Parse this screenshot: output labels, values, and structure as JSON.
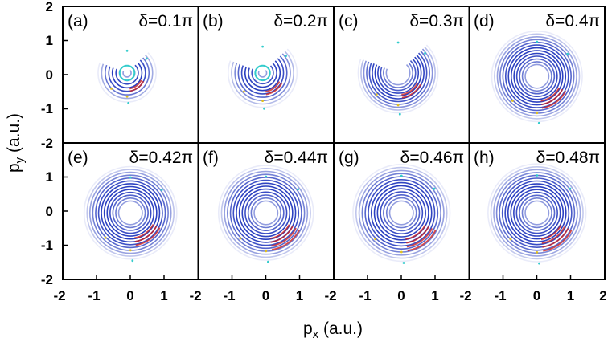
{
  "figure": {
    "ylabel": {
      "main": "p",
      "sub": "y",
      "unit": " (a.u.)"
    },
    "xlabel": {
      "main": "p",
      "sub": "x",
      "unit": " (a.u.)"
    },
    "y_ticks": [
      "2",
      "1",
      "0",
      "-1",
      "-2",
      "1",
      "0",
      "-1",
      "-2"
    ],
    "x_ticks": [
      "-2",
      "-1",
      "0",
      "1",
      "-2",
      "-1",
      "0",
      "1",
      "-2",
      "-1",
      "0",
      "1",
      "-2",
      "-1",
      "0",
      "1",
      "2"
    ]
  },
  "colors": {
    "ring_blue": "#2a3fc0",
    "ring_red": "#cc2222",
    "ring_cyan": "#33cccc",
    "ring_yellow": "#e0c020",
    "frame": "#000000"
  },
  "panels": [
    {
      "label": "(a)",
      "delta": "δ=0.1π"
    },
    {
      "label": "(b)",
      "delta": "δ=0.2π"
    },
    {
      "label": "(c)",
      "delta": "δ=0.3π"
    },
    {
      "label": "(d)",
      "delta": "δ=0.4π"
    },
    {
      "label": "(e)",
      "delta": "δ=0.42π"
    },
    {
      "label": "(f)",
      "delta": "δ=0.44π"
    },
    {
      "label": "(g)",
      "delta": "δ=0.46π"
    },
    {
      "label": "(h)",
      "delta": "δ=0.48π"
    }
  ],
  "chart_data": {
    "type": "heatmap",
    "layout": "2x4 panel grid",
    "xlabel": "px (a.u.)",
    "ylabel": "py (a.u.)",
    "xlim": [
      -2,
      2
    ],
    "ylim": [
      -2,
      2
    ],
    "panels": [
      {
        "label": "(a)",
        "delta": "δ=0.1π",
        "delta_pi": 0.1
      },
      {
        "label": "(b)",
        "delta": "δ=0.2π",
        "delta_pi": 0.2
      },
      {
        "label": "(c)",
        "delta": "δ=0.3π",
        "delta_pi": 0.3
      },
      {
        "label": "(d)",
        "delta": "δ=0.4π",
        "delta_pi": 0.4
      },
      {
        "label": "(e)",
        "delta": "δ=0.42π",
        "delta_pi": 0.42
      },
      {
        "label": "(f)",
        "delta": "δ=0.44π",
        "delta_pi": 0.44
      },
      {
        "label": "(g)",
        "delta": "δ=0.46π",
        "delta_pi": 0.46
      },
      {
        "label": "(h)",
        "delta": "δ=0.48π",
        "delta_pi": 0.48
      }
    ]
  }
}
